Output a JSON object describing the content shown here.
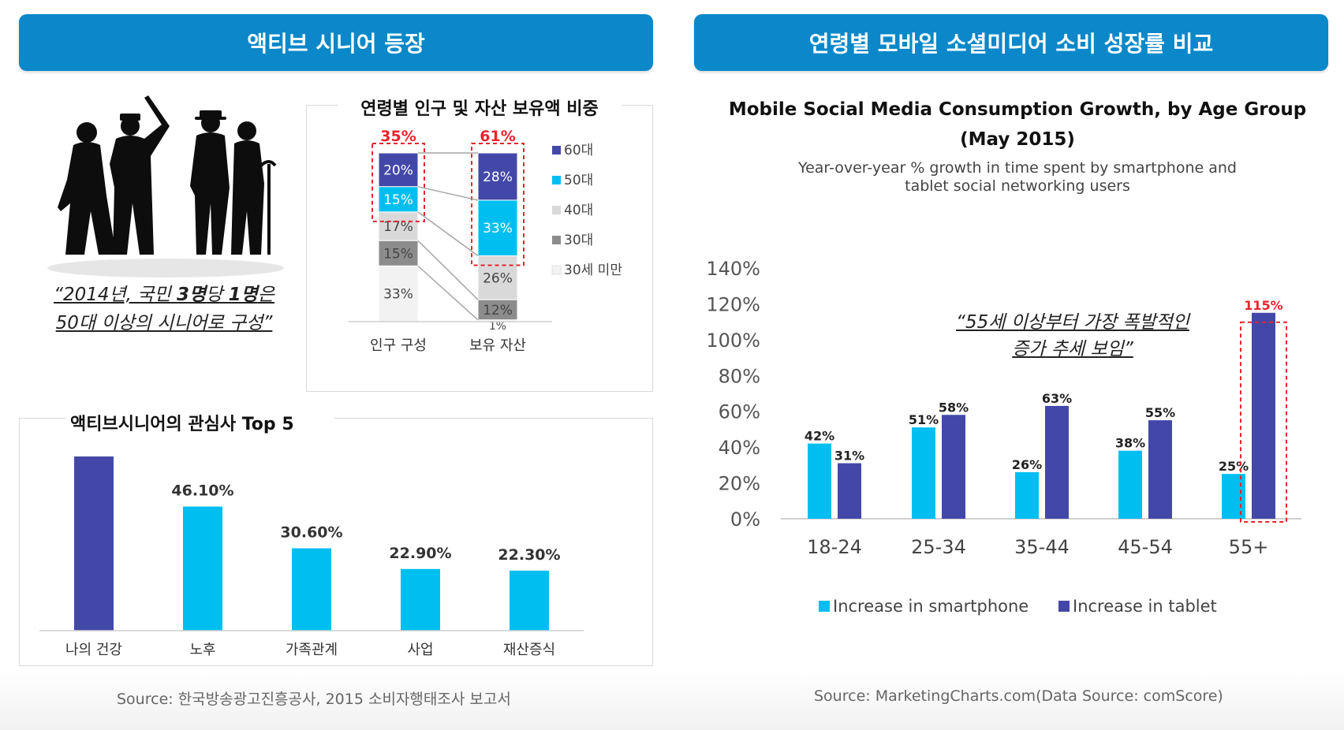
{
  "left_banner": "액티브 시니어 등장",
  "right_banner": "연령별 모바일 소셜미디어 소비 성장률 비교",
  "quote_left": {
    "line1_parts": [
      "“2014년, 국민 ",
      "3명",
      "당 ",
      "1명",
      "은"
    ],
    "line2": "50대 이상의 시니어로 구성”"
  },
  "quote_right": {
    "line1": "“55세 이상부터 가장 폭발적인",
    "line2": "증가 추세 보임”"
  },
  "source_left": "Source: 한국방송광고진흥공사, 2015 소비자행태조사 보고서",
  "source_right": "Source: MarketingCharts.com(Data Source: comScore)",
  "colors": {
    "banner": "#0a88c9",
    "navy": "#4348a8",
    "cyan": "#00bff0",
    "light_gray": "#d9d9d9",
    "mid_gray": "#8c8c8c",
    "pale_gray": "#f2f2f2",
    "highlight_red": "#e8242d"
  },
  "chart_data": [
    {
      "type": "bar",
      "subtype": "stacked-100",
      "title": "연령별 인구 및 자산 보유액 비중",
      "categories": [
        "인구 구성",
        "보유 자산"
      ],
      "series": [
        {
          "name": "60대",
          "values": [
            20,
            28
          ],
          "labels": [
            "20%",
            "28%"
          ],
          "color": "#4348a8"
        },
        {
          "name": "50대",
          "values": [
            15,
            33
          ],
          "labels": [
            "15%",
            "33%"
          ],
          "color": "#00bff0"
        },
        {
          "name": "40대",
          "values": [
            17,
            26
          ],
          "labels": [
            "17%",
            "26%"
          ],
          "color": "#d9d9d9"
        },
        {
          "name": "30대",
          "values": [
            15,
            12
          ],
          "labels": [
            "15%",
            "12%"
          ],
          "color": "#8c8c8c"
        },
        {
          "name": "30세 미만",
          "values": [
            33,
            1
          ],
          "labels": [
            "33%",
            "1%"
          ],
          "color": "#f2f2f2"
        }
      ],
      "highlight_totals": [
        "35%",
        "61%"
      ],
      "legend_position": "right"
    },
    {
      "type": "bar",
      "title": "액티브시니어의 관심사 Top 5",
      "categories": [
        "나의 건강",
        "노후",
        "가족관계",
        "사업",
        "재산증식"
      ],
      "values": [
        null,
        46.1,
        30.6,
        22.9,
        22.3
      ],
      "value_labels": [
        "",
        "46.10%",
        "30.60%",
        "22.90%",
        "22.30%"
      ],
      "visual_max": 65,
      "first_bar_estimate": 64.7,
      "colors": [
        "#4348a8",
        "#00bff0",
        "#00bff0",
        "#00bff0",
        "#00bff0"
      ]
    },
    {
      "type": "bar",
      "title": "Mobile Social Media Consumption Growth, by Age Group",
      "title_line2": "(May 2015)",
      "subtitle_line1": "Year-over-year % growth in time spent by smartphone and",
      "subtitle_line2": "tablet social networking users",
      "categories": [
        "18-24",
        "25-34",
        "35-44",
        "45-54",
        "55+"
      ],
      "series": [
        {
          "name": "Increase in smartphone",
          "values": [
            42,
            51,
            26,
            38,
            25
          ],
          "labels": [
            "42%",
            "51%",
            "26%",
            "38%",
            "25%"
          ],
          "color": "#00bff0"
        },
        {
          "name": "Increase in tablet",
          "values": [
            31,
            58,
            63,
            55,
            115
          ],
          "labels": [
            "31%",
            "58%",
            "63%",
            "55%",
            "115%"
          ],
          "color": "#4348a8"
        }
      ],
      "yticks": [
        "0%",
        "20%",
        "40%",
        "60%",
        "80%",
        "100%",
        "120%",
        "140%"
      ],
      "ylim": [
        0,
        140
      ],
      "legend_position": "bottom",
      "grid": false
    }
  ]
}
